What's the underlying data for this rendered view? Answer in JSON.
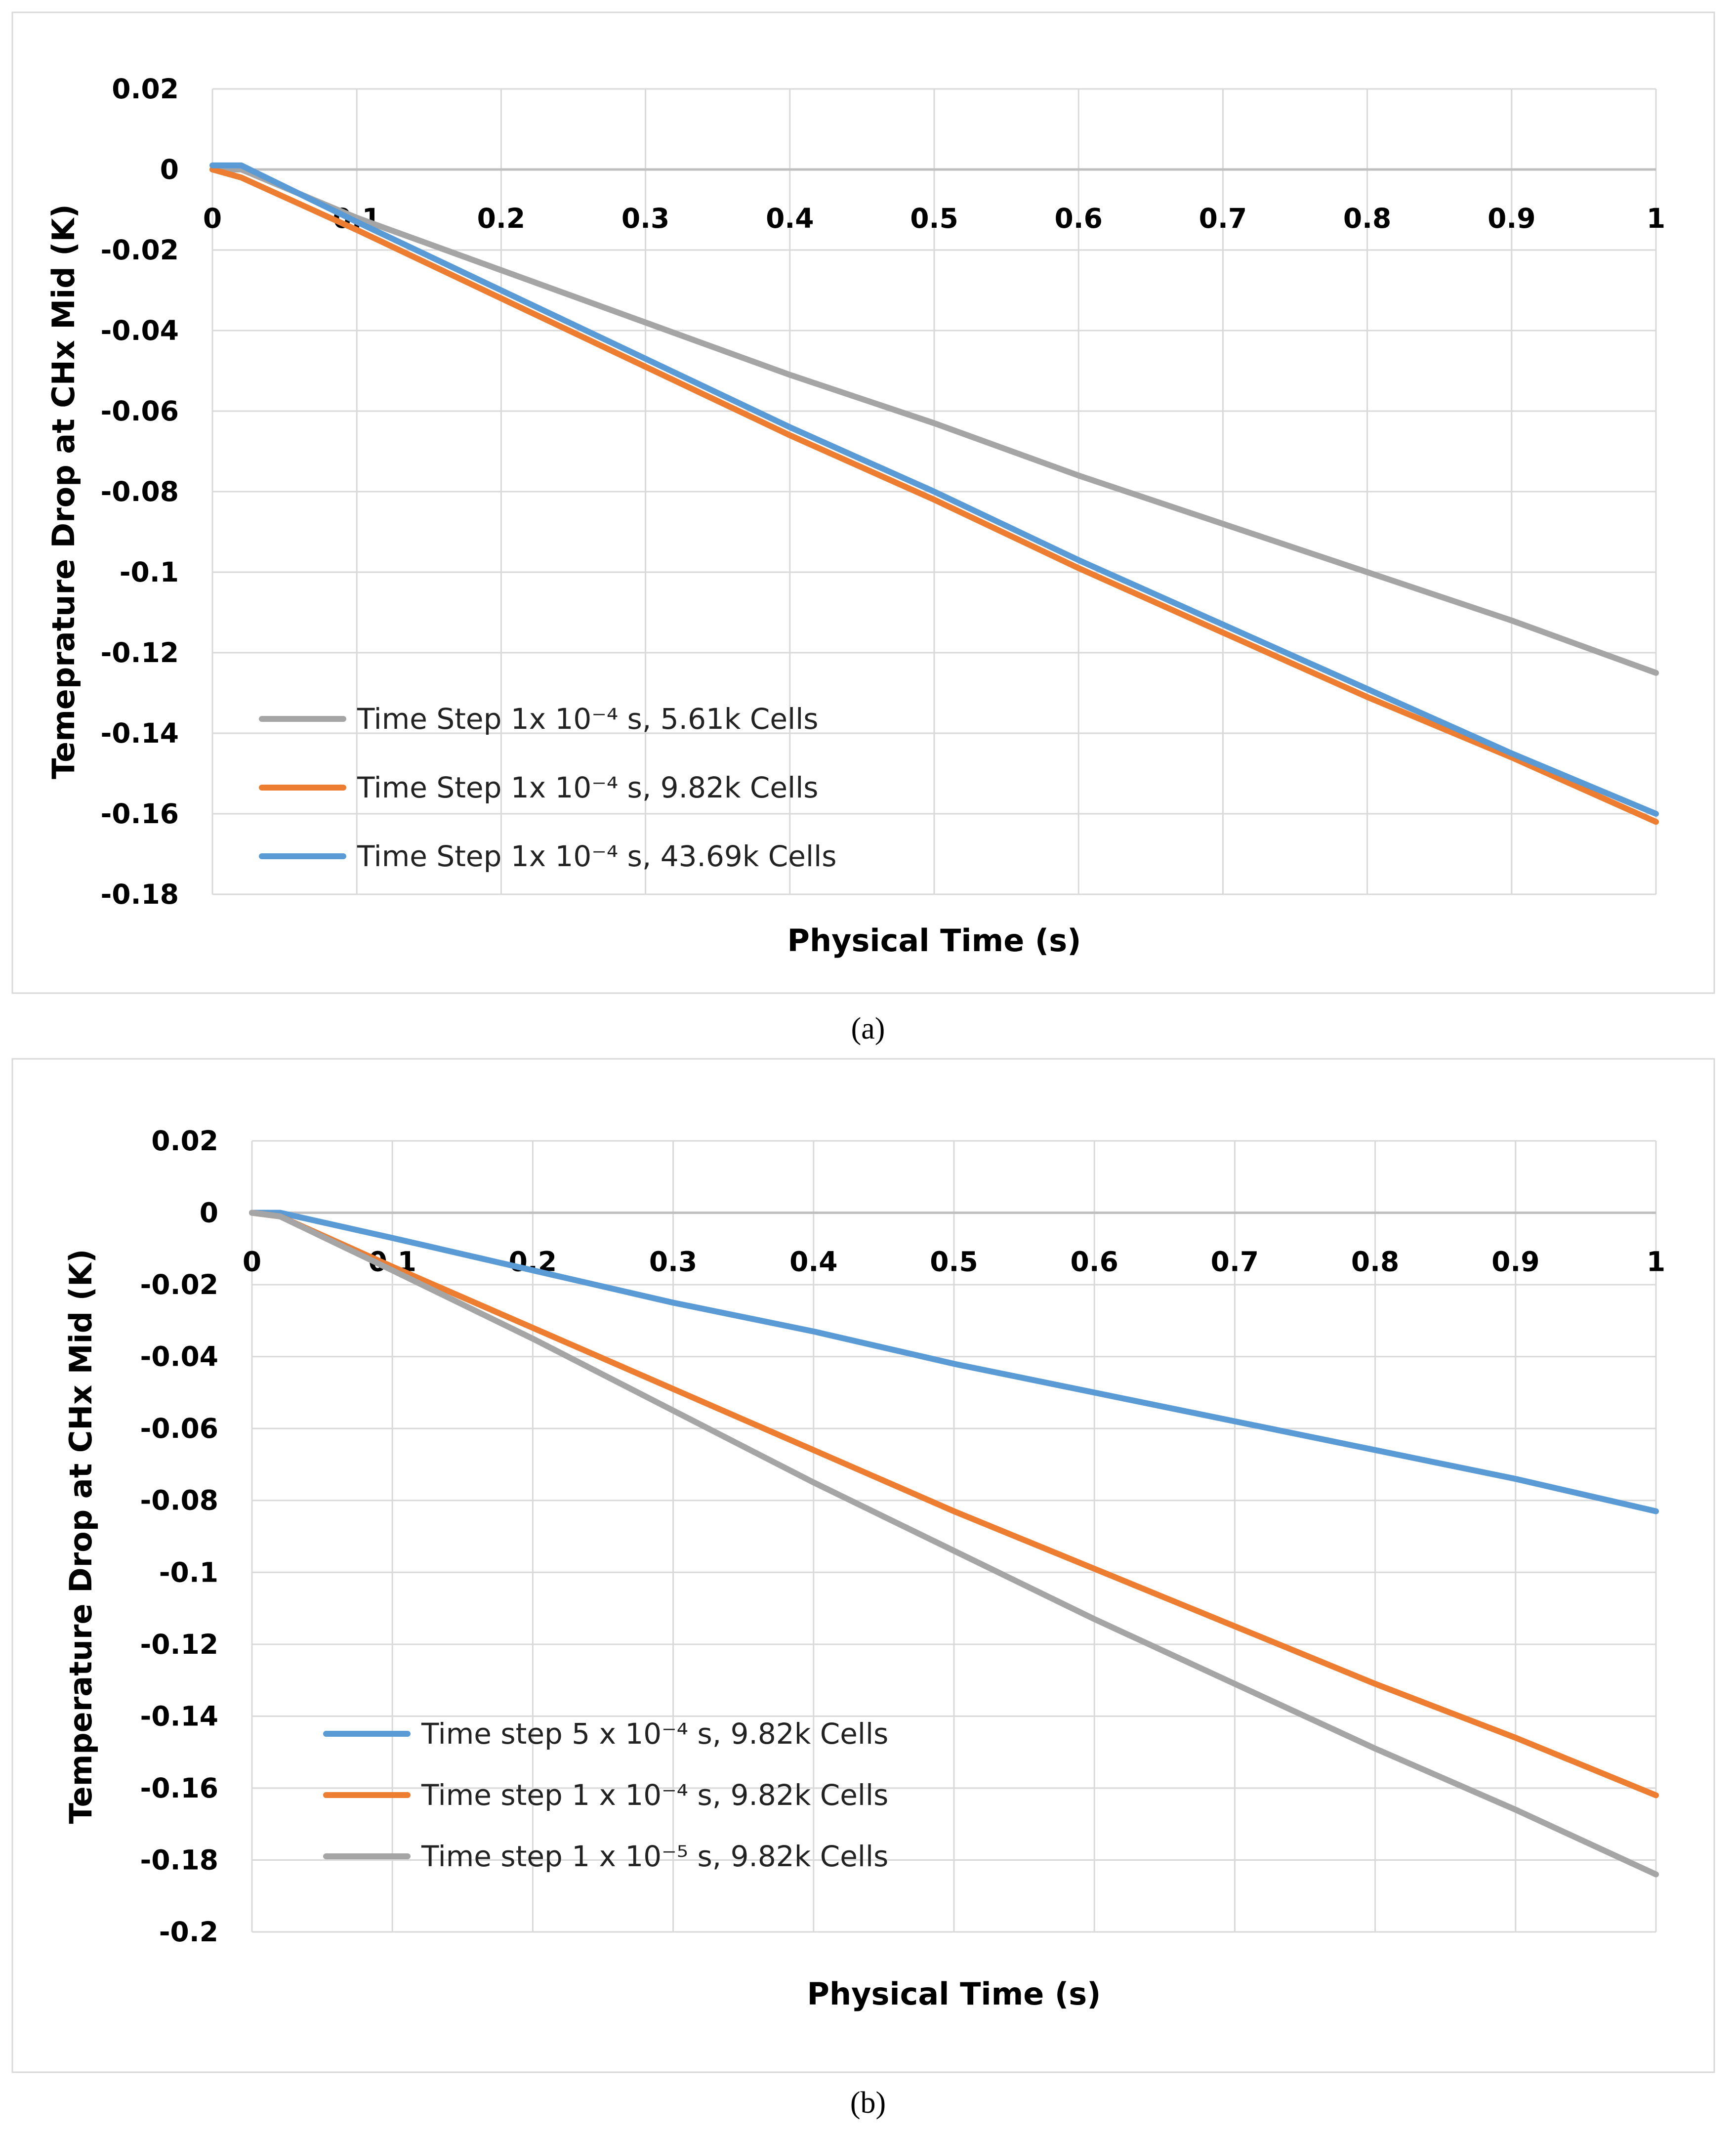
{
  "chart_data": [
    {
      "type": "line",
      "caption": "(a)",
      "xlabel": "Physical Time (s)",
      "ylabel": "Temeprature Drop at CHx Mid (K)",
      "xlim": [
        0,
        1
      ],
      "ylim": [
        -0.18,
        0.02
      ],
      "xticks": [
        "0",
        "0.1",
        "0.2",
        "0.3",
        "0.4",
        "0.5",
        "0.6",
        "0.7",
        "0.8",
        "0.9",
        "1"
      ],
      "yticks": [
        "0.02",
        "0",
        "-0.02",
        "-0.04",
        "-0.06",
        "-0.08",
        "-0.1",
        "-0.12",
        "-0.14",
        "-0.16",
        "-0.18"
      ],
      "legend_position": "bottom-left",
      "grid": true,
      "series": [
        {
          "name": "Time Step 1x 10⁻⁴ s, 5.61k Cells",
          "color": "#a5a5a5",
          "x": [
            0,
            0.02,
            0.1,
            0.2,
            0.3,
            0.4,
            0.5,
            0.6,
            0.7,
            0.8,
            0.9,
            1.0
          ],
          "y": [
            0,
            0,
            -0.012,
            -0.025,
            -0.038,
            -0.051,
            -0.063,
            -0.076,
            -0.088,
            -0.1,
            -0.112,
            -0.125
          ]
        },
        {
          "name": "Time Step 1x 10⁻⁴ s, 9.82k Cells",
          "color": "#ed7d31",
          "x": [
            0,
            0.02,
            0.1,
            0.2,
            0.3,
            0.4,
            0.5,
            0.6,
            0.7,
            0.8,
            0.9,
            1.0
          ],
          "y": [
            0,
            -0.002,
            -0.015,
            -0.032,
            -0.049,
            -0.066,
            -0.082,
            -0.099,
            -0.115,
            -0.131,
            -0.146,
            -0.162
          ]
        },
        {
          "name": "Time Step 1x 10⁻⁴ s, 43.69k Cells",
          "color": "#5b9bd5",
          "x": [
            0,
            0.02,
            0.1,
            0.2,
            0.3,
            0.4,
            0.5,
            0.6,
            0.7,
            0.8,
            0.9,
            1.0
          ],
          "y": [
            0.001,
            0.001,
            -0.013,
            -0.03,
            -0.047,
            -0.064,
            -0.08,
            -0.097,
            -0.113,
            -0.129,
            -0.145,
            -0.16
          ]
        }
      ]
    },
    {
      "type": "line",
      "caption": "(b)",
      "xlabel": "Physical Time (s)",
      "ylabel": "Temperature Drop at CHx Mid (K)",
      "xlim": [
        0,
        1
      ],
      "ylim": [
        -0.2,
        0.02
      ],
      "xticks": [
        "0",
        "0.1",
        "0.2",
        "0.3",
        "0.4",
        "0.5",
        "0.6",
        "0.7",
        "0.8",
        "0.9",
        "1"
      ],
      "yticks": [
        "0.02",
        "0",
        "-0.02",
        "-0.04",
        "-0.06",
        "-0.08",
        "-0.1",
        "-0.12",
        "-0.14",
        "-0.16",
        "-0.18",
        "-0.2"
      ],
      "legend_position": "bottom-left",
      "grid": true,
      "series": [
        {
          "name": "Time step 5 x 10⁻⁴ s, 9.82k Cells",
          "color": "#5b9bd5",
          "x": [
            0,
            0.02,
            0.1,
            0.2,
            0.3,
            0.4,
            0.5,
            0.6,
            0.7,
            0.8,
            0.9,
            1.0
          ],
          "y": [
            0,
            0,
            -0.007,
            -0.016,
            -0.025,
            -0.033,
            -0.042,
            -0.05,
            -0.058,
            -0.066,
            -0.074,
            -0.083
          ]
        },
        {
          "name": "Time step 1 x 10⁻⁴ s, 9.82k Cells",
          "color": "#ed7d31",
          "x": [
            0,
            0.02,
            0.1,
            0.2,
            0.3,
            0.4,
            0.5,
            0.6,
            0.7,
            0.8,
            0.9,
            1.0
          ],
          "y": [
            0,
            -0.001,
            -0.015,
            -0.032,
            -0.049,
            -0.066,
            -0.083,
            -0.099,
            -0.115,
            -0.131,
            -0.146,
            -0.162
          ]
        },
        {
          "name": "Time step 1 x 10⁻⁵ s, 9.82k Cells",
          "color": "#a5a5a5",
          "x": [
            0,
            0.02,
            0.1,
            0.2,
            0.3,
            0.4,
            0.5,
            0.6,
            0.7,
            0.8,
            0.9,
            1.0
          ],
          "y": [
            0,
            -0.001,
            -0.016,
            -0.035,
            -0.055,
            -0.075,
            -0.094,
            -0.113,
            -0.131,
            -0.149,
            -0.166,
            -0.184
          ]
        }
      ]
    }
  ]
}
